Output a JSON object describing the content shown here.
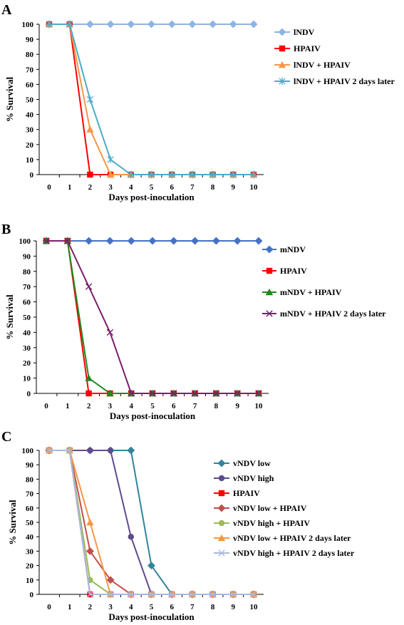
{
  "chart_data": [
    {
      "panel": "A",
      "type": "line",
      "xlabel": "Days post-inoculation",
      "ylabel": "% Survival",
      "x": [
        0,
        1,
        2,
        3,
        4,
        5,
        6,
        7,
        8,
        9,
        10
      ],
      "ylim": [
        0,
        100
      ],
      "yticks": [
        0,
        10,
        20,
        30,
        40,
        50,
        60,
        70,
        80,
        90,
        100
      ],
      "legend_position": "right",
      "series": [
        {
          "name": "lNDV",
          "color": "#8eb4e3",
          "marker": "diamond",
          "values": [
            100,
            100,
            100,
            100,
            100,
            100,
            100,
            100,
            100,
            100,
            100
          ]
        },
        {
          "name": "HPAIV",
          "color": "#ff0000",
          "marker": "square",
          "values": [
            100,
            100,
            0,
            0,
            0,
            0,
            0,
            0,
            0,
            0,
            0
          ]
        },
        {
          "name": "lNDV + HPAIV",
          "color": "#f79646",
          "marker": "triangle",
          "values": [
            100,
            100,
            30,
            0,
            0,
            0,
            0,
            0,
            0,
            0,
            0
          ]
        },
        {
          "name": "lNDV + HPAIV 2 days later",
          "color": "#4bacc6",
          "marker": "star",
          "values": [
            100,
            100,
            50,
            10,
            0,
            0,
            0,
            0,
            0,
            0,
            0
          ]
        }
      ]
    },
    {
      "panel": "B",
      "type": "line",
      "xlabel": "Days post-inoculation",
      "ylabel": "% Survival",
      "x": [
        0,
        1,
        2,
        3,
        4,
        5,
        6,
        7,
        8,
        9,
        10
      ],
      "ylim": [
        0,
        100
      ],
      "yticks": [
        0,
        10,
        20,
        30,
        40,
        50,
        60,
        70,
        80,
        90,
        100
      ],
      "legend_position": "right",
      "series": [
        {
          "name": "mNDV",
          "color": "#4472c4",
          "marker": "diamond",
          "values": [
            100,
            100,
            100,
            100,
            100,
            100,
            100,
            100,
            100,
            100,
            100
          ]
        },
        {
          "name": "HPAIV",
          "color": "#ff0000",
          "marker": "square",
          "values": [
            100,
            100,
            0,
            0,
            0,
            0,
            0,
            0,
            0,
            0,
            0
          ]
        },
        {
          "name": "mNDV + HPAIV",
          "color": "#1e8a1e",
          "marker": "triangle",
          "values": [
            100,
            100,
            10,
            0,
            0,
            0,
            0,
            0,
            0,
            0,
            0
          ]
        },
        {
          "name": "mNDV + HPAIV 2 days  later",
          "color": "#7b1f6a",
          "marker": "x",
          "values": [
            100,
            100,
            70,
            40,
            0,
            0,
            0,
            0,
            0,
            0,
            0
          ]
        }
      ]
    },
    {
      "panel": "C",
      "type": "line",
      "xlabel": "Days post-inoculation",
      "ylabel": "% Survival",
      "x": [
        0,
        1,
        2,
        3,
        4,
        5,
        6,
        7,
        8,
        9,
        10
      ],
      "ylim": [
        0,
        100
      ],
      "yticks": [
        0,
        10,
        20,
        30,
        40,
        50,
        60,
        70,
        80,
        90,
        100
      ],
      "legend_position": "right",
      "series": [
        {
          "name": "vNDV low",
          "color": "#31849b",
          "marker": "diamond",
          "values": [
            100,
            100,
            100,
            100,
            100,
            20,
            0,
            0,
            0,
            0,
            0
          ]
        },
        {
          "name": "vNDV high",
          "color": "#5f4b8b",
          "marker": "circle",
          "values": [
            100,
            100,
            100,
            100,
            40,
            0,
            0,
            0,
            0,
            0,
            0
          ]
        },
        {
          "name": "HPAIV",
          "color": "#ff0000",
          "marker": "square",
          "values": [
            100,
            100,
            0,
            0,
            0,
            0,
            0,
            0,
            0,
            0,
            0
          ]
        },
        {
          "name": "vNDV low + HPAIV",
          "color": "#c0504d",
          "marker": "diamond",
          "values": [
            100,
            100,
            30,
            10,
            0,
            0,
            0,
            0,
            0,
            0,
            0
          ]
        },
        {
          "name": "vNDV high + HPAIV",
          "color": "#9bbb59",
          "marker": "circle",
          "values": [
            100,
            100,
            10,
            0,
            0,
            0,
            0,
            0,
            0,
            0,
            0
          ]
        },
        {
          "name": "vNDV low + HPAIV 2 days  later",
          "color": "#f79646",
          "marker": "triangle",
          "values": [
            100,
            100,
            50,
            0,
            0,
            0,
            0,
            0,
            0,
            0,
            0
          ]
        },
        {
          "name": "vNDV high + HPAIV 2 days later",
          "color": "#a6b9e0",
          "marker": "x",
          "values": [
            100,
            100,
            0,
            0,
            0,
            0,
            0,
            0,
            0,
            0,
            0
          ]
        }
      ]
    }
  ]
}
